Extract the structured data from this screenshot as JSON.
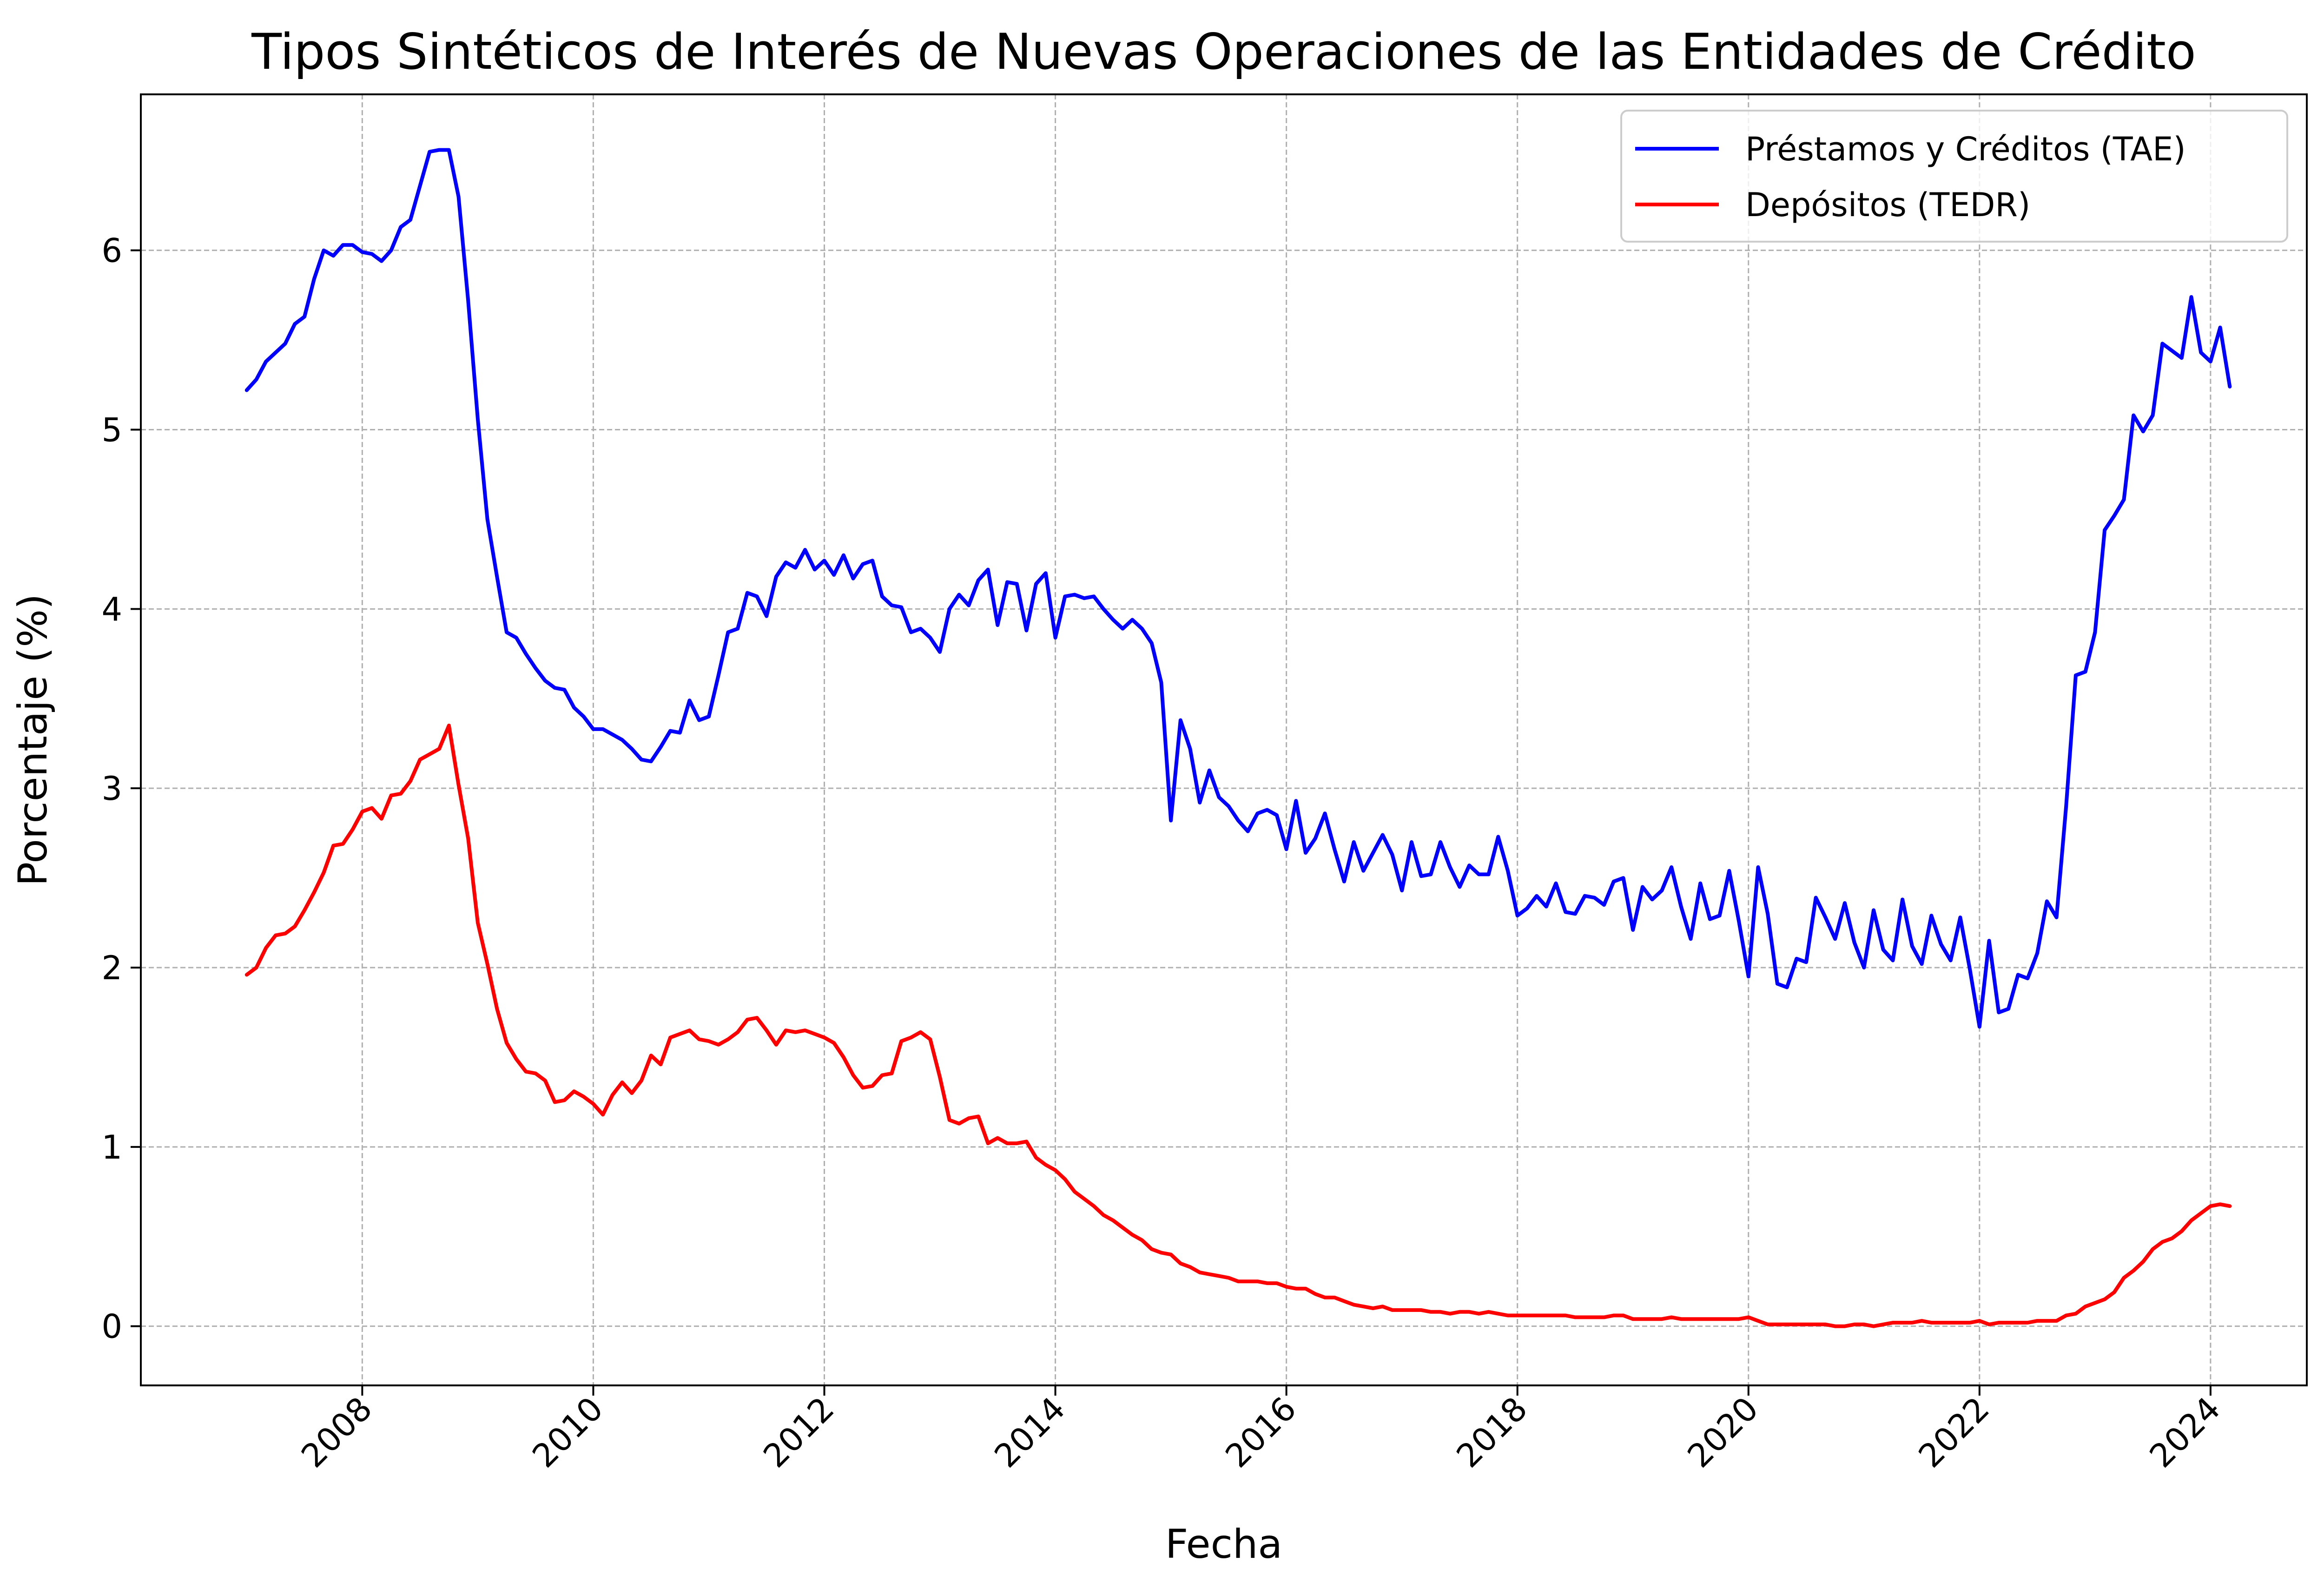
{
  "chart_data": {
    "type": "line",
    "title": "Tipos Sintéticos de Interés de Nuevas Operaciones de las Entidades de Crédito",
    "xlabel": "Fecha",
    "ylabel": "Porcentaje (%)",
    "x_start": "2007-01",
    "x_step": "1 month",
    "xlim": [
      "2006-02",
      "2024-11"
    ],
    "ylim": [
      -0.33,
      6.87
    ],
    "x_ticks": [
      "2008",
      "2010",
      "2012",
      "2014",
      "2016",
      "2018",
      "2020",
      "2022",
      "2024"
    ],
    "y_ticks": [
      0,
      1,
      2,
      3,
      4,
      5,
      6
    ],
    "grid": true,
    "legend_position": "top-right",
    "series": [
      {
        "name": "Préstamos y Créditos (TAE)",
        "color": "#0000ff",
        "values": [
          5.22,
          5.28,
          5.38,
          5.43,
          5.48,
          5.59,
          5.63,
          5.84,
          6.0,
          5.97,
          6.03,
          6.03,
          5.99,
          5.98,
          5.94,
          6.0,
          6.13,
          6.17,
          6.36,
          6.55,
          6.56,
          6.56,
          6.3,
          5.72,
          5.06,
          4.5,
          4.18,
          3.87,
          3.84,
          3.75,
          3.67,
          3.6,
          3.56,
          3.55,
          3.45,
          3.4,
          3.33,
          3.33,
          3.3,
          3.27,
          3.22,
          3.16,
          3.15,
          3.23,
          3.32,
          3.31,
          3.49,
          3.38,
          3.4,
          3.63,
          3.87,
          3.89,
          4.09,
          4.07,
          3.96,
          4.18,
          4.26,
          4.23,
          4.33,
          4.22,
          4.27,
          4.19,
          4.3,
          4.17,
          4.25,
          4.27,
          4.07,
          4.02,
          4.01,
          3.87,
          3.89,
          3.84,
          3.76,
          4.0,
          4.08,
          4.02,
          4.16,
          4.22,
          3.91,
          4.15,
          4.14,
          3.88,
          4.14,
          4.2,
          3.84,
          4.07,
          4.08,
          4.06,
          4.07,
          4.0,
          3.94,
          3.89,
          3.94,
          3.89,
          3.81,
          3.59,
          2.82,
          3.38,
          3.22,
          2.92,
          3.1,
          2.95,
          2.9,
          2.82,
          2.76,
          2.86,
          2.88,
          2.85,
          2.66,
          2.93,
          2.64,
          2.72,
          2.86,
          2.66,
          2.48,
          2.7,
          2.54,
          2.64,
          2.74,
          2.63,
          2.43,
          2.7,
          2.51,
          2.52,
          2.7,
          2.56,
          2.45,
          2.57,
          2.52,
          2.52,
          2.73,
          2.54,
          2.29,
          2.33,
          2.4,
          2.34,
          2.47,
          2.31,
          2.3,
          2.4,
          2.39,
          2.35,
          2.48,
          2.5,
          2.21,
          2.45,
          2.38,
          2.43,
          2.56,
          2.34,
          2.16,
          2.47,
          2.27,
          2.29,
          2.54,
          2.26,
          1.95,
          2.56,
          2.3,
          1.91,
          1.89,
          2.05,
          2.03,
          2.39,
          2.28,
          2.16,
          2.36,
          2.14,
          2.0,
          2.32,
          2.1,
          2.04,
          2.38,
          2.12,
          2.02,
          2.29,
          2.13,
          2.04,
          2.28,
          1.99,
          1.67,
          2.15,
          1.75,
          1.77,
          1.96,
          1.94,
          2.08,
          2.37,
          2.28,
          2.9,
          3.63,
          3.65,
          3.87,
          4.44,
          4.52,
          4.61,
          5.08,
          4.99,
          5.08,
          5.48,
          5.44,
          5.4,
          5.74,
          5.43,
          5.38,
          5.57,
          5.24
        ]
      },
      {
        "name": "Depósitos (TEDR)",
        "color": "#ff0000",
        "values": [
          1.96,
          2.0,
          2.11,
          2.18,
          2.19,
          2.23,
          2.32,
          2.42,
          2.53,
          2.68,
          2.69,
          2.77,
          2.87,
          2.89,
          2.83,
          2.96,
          2.97,
          3.04,
          3.16,
          3.19,
          3.22,
          3.35,
          3.02,
          2.72,
          2.25,
          2.02,
          1.77,
          1.58,
          1.49,
          1.42,
          1.41,
          1.37,
          1.25,
          1.26,
          1.31,
          1.28,
          1.24,
          1.18,
          1.29,
          1.36,
          1.3,
          1.37,
          1.51,
          1.46,
          1.61,
          1.63,
          1.65,
          1.6,
          1.59,
          1.57,
          1.6,
          1.64,
          1.71,
          1.72,
          1.65,
          1.57,
          1.65,
          1.64,
          1.65,
          1.63,
          1.61,
          1.58,
          1.5,
          1.4,
          1.33,
          1.34,
          1.4,
          1.41,
          1.59,
          1.61,
          1.64,
          1.6,
          1.39,
          1.15,
          1.13,
          1.16,
          1.17,
          1.02,
          1.05,
          1.02,
          1.02,
          1.03,
          0.94,
          0.9,
          0.87,
          0.82,
          0.75,
          0.71,
          0.67,
          0.62,
          0.59,
          0.55,
          0.51,
          0.48,
          0.43,
          0.41,
          0.4,
          0.35,
          0.33,
          0.3,
          0.29,
          0.28,
          0.27,
          0.25,
          0.25,
          0.25,
          0.24,
          0.24,
          0.22,
          0.21,
          0.21,
          0.18,
          0.16,
          0.16,
          0.14,
          0.12,
          0.11,
          0.1,
          0.11,
          0.09,
          0.09,
          0.09,
          0.09,
          0.08,
          0.08,
          0.07,
          0.08,
          0.08,
          0.07,
          0.08,
          0.07,
          0.06,
          0.06,
          0.06,
          0.06,
          0.06,
          0.06,
          0.06,
          0.05,
          0.05,
          0.05,
          0.05,
          0.06,
          0.06,
          0.04,
          0.04,
          0.04,
          0.04,
          0.05,
          0.04,
          0.04,
          0.04,
          0.04,
          0.04,
          0.04,
          0.04,
          0.05,
          0.03,
          0.01,
          0.01,
          0.01,
          0.01,
          0.01,
          0.01,
          0.01,
          0.0,
          0.0,
          0.01,
          0.01,
          0.0,
          0.01,
          0.02,
          0.02,
          0.02,
          0.03,
          0.02,
          0.02,
          0.02,
          0.02,
          0.02,
          0.03,
          0.01,
          0.02,
          0.02,
          0.02,
          0.02,
          0.03,
          0.03,
          0.03,
          0.06,
          0.07,
          0.11,
          0.13,
          0.15,
          0.19,
          0.27,
          0.31,
          0.36,
          0.43,
          0.47,
          0.49,
          0.53,
          0.59,
          0.63,
          0.67,
          0.68,
          0.67
        ]
      }
    ]
  }
}
